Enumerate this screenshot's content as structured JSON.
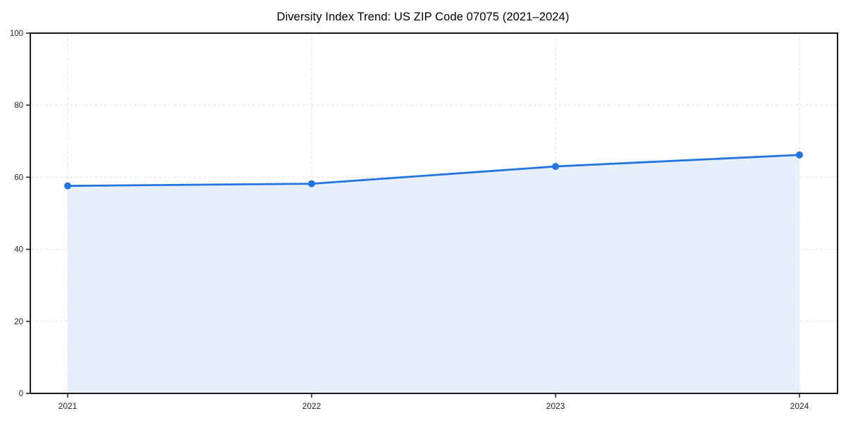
{
  "chart_data": {
    "type": "area",
    "title": "Diversity Index Trend: US ZIP Code 07075 (2021–2024)",
    "series_name": "Diversity Index",
    "x": [
      2021,
      2022,
      2023,
      2024
    ],
    "values": [
      57.6,
      58.2,
      63.0,
      66.2
    ],
    "xlabel": "",
    "ylabel": "",
    "ylim": [
      0,
      100
    ],
    "yticks": [
      0,
      20,
      40,
      60,
      80,
      100
    ],
    "xtick_labels": [
      "2021",
      "2022",
      "2023",
      "2024"
    ],
    "grid": true,
    "grid_style": "dashed",
    "legend": false,
    "colors": {
      "line": "#2374e1",
      "marker": "#2374e1",
      "fill": "#e7effc",
      "grid": "#e2e2e2",
      "axis": "#1a1a1a",
      "tick_label": "#262626",
      "title": "#000000",
      "background": "#ffffff"
    }
  }
}
